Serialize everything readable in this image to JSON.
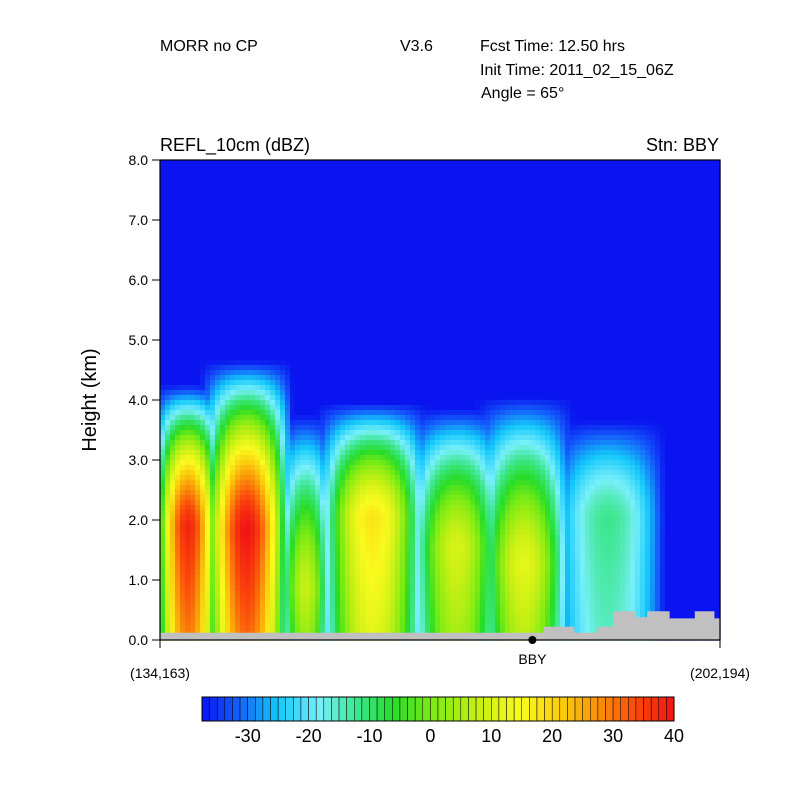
{
  "header": {
    "model": "MORR no CP",
    "version": "V3.6",
    "fcst_time": "Fcst Time:  12.50 hrs",
    "init_time": "Init Time:  2011_02_15_06Z",
    "angle": "Angle = 65°"
  },
  "chart_data": {
    "type": "heatmap",
    "title": "REFL_10cm (dBZ)",
    "station_label": "Stn: BBY",
    "ylabel": "Height (km)",
    "xlabel": "",
    "ylim": [
      0,
      8
    ],
    "y_ticks": [
      "0.0",
      "1.0",
      "2.0",
      "3.0",
      "4.0",
      "5.0",
      "6.0",
      "7.0",
      "8.0"
    ],
    "x_start_label": "(134,163)",
    "x_end_label": "(202,194)",
    "station_marker": {
      "label": "BBY",
      "x_fraction": 0.665
    },
    "colorbar": {
      "min": -37.5,
      "max": 40,
      "ticks": [
        "-30",
        "-20",
        "-10",
        "0",
        "10",
        "20",
        "30",
        "40"
      ],
      "tick_values": [
        -30,
        -20,
        -10,
        0,
        10,
        20,
        30,
        40
      ]
    },
    "cells": [
      {
        "x": [
          0.0,
          0.1
        ],
        "top_km": 4.0,
        "peak_dbz": 38,
        "peak_km": 1.85
      },
      {
        "x": [
          0.09,
          0.22
        ],
        "top_km": 4.4,
        "peak_dbz": 40,
        "peak_km": 1.8
      },
      {
        "x": [
          0.22,
          0.3
        ],
        "top_km": 3.5,
        "peak_dbz": 8,
        "peak_km": 0.8
      },
      {
        "x": [
          0.3,
          0.46
        ],
        "top_km": 3.7,
        "peak_dbz": 18,
        "peak_km": 2.0
      },
      {
        "x": [
          0.46,
          0.6
        ],
        "top_km": 3.6,
        "peak_dbz": 10,
        "peak_km": 1.5
      },
      {
        "x": [
          0.58,
          0.72
        ],
        "top_km": 3.8,
        "peak_dbz": 12,
        "peak_km": 1.2
      },
      {
        "x": [
          0.72,
          0.88
        ],
        "top_km": 3.4,
        "peak_dbz": -12,
        "peak_km": 2.0
      }
    ]
  },
  "terrain_km": [
    [
      0.0,
      0.12
    ],
    [
      0.685,
      0.12
    ],
    [
      0.685,
      0.22
    ],
    [
      0.74,
      0.22
    ],
    [
      0.74,
      0.12
    ],
    [
      0.78,
      0.12
    ],
    [
      0.78,
      0.22
    ],
    [
      0.81,
      0.22
    ],
    [
      0.81,
      0.48
    ],
    [
      0.85,
      0.48
    ],
    [
      0.85,
      0.38
    ],
    [
      0.87,
      0.38
    ],
    [
      0.87,
      0.48
    ],
    [
      0.91,
      0.48
    ],
    [
      0.91,
      0.36
    ],
    [
      0.955,
      0.36
    ],
    [
      0.955,
      0.48
    ],
    [
      0.99,
      0.48
    ],
    [
      0.99,
      0.36
    ],
    [
      1.0,
      0.36
    ]
  ],
  "colors": {
    "background_field": "#0a1ff0",
    "terrain": "#c0c0c0",
    "axis": "#000000"
  }
}
